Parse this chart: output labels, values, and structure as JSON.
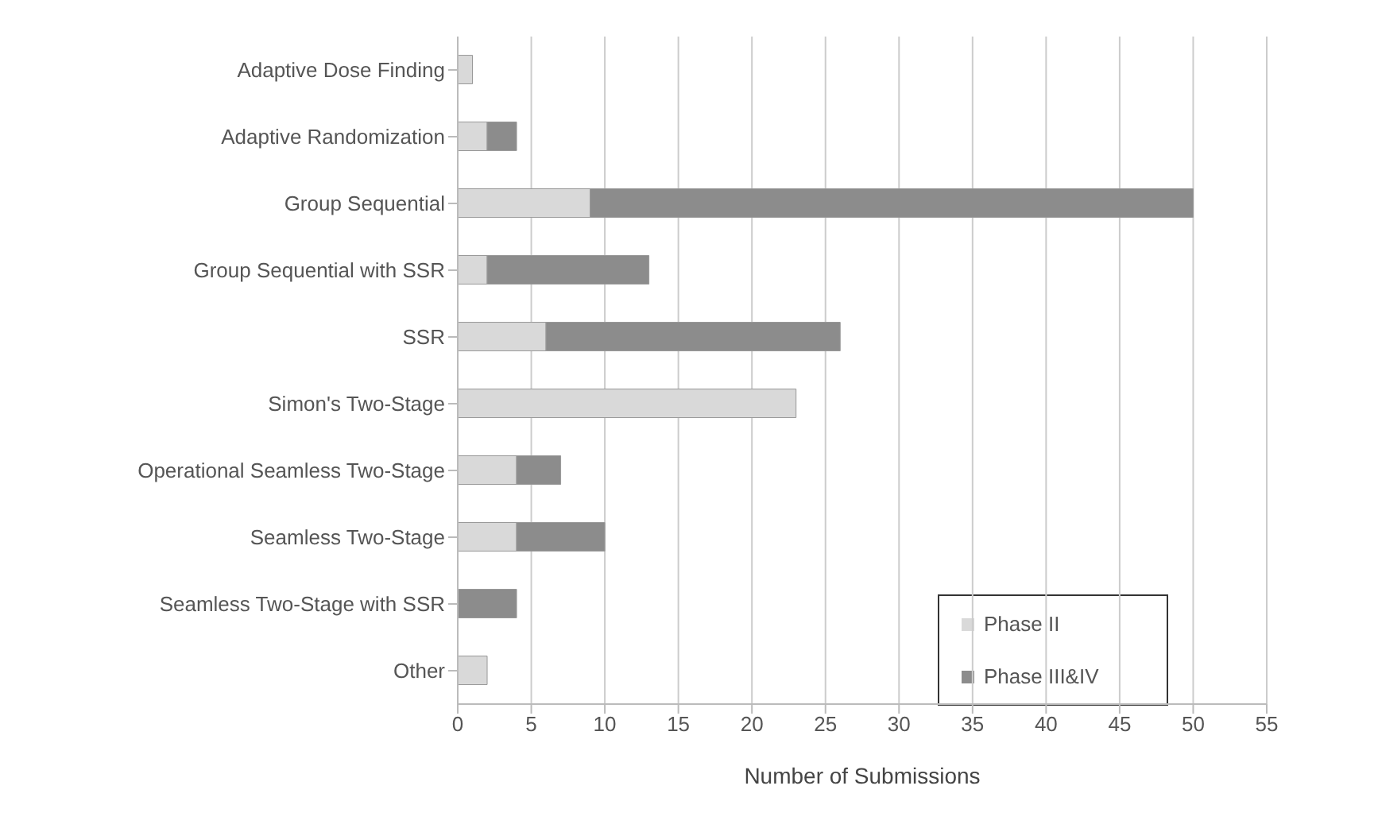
{
  "chart_data": {
    "type": "bar",
    "orientation": "horizontal",
    "stacked": true,
    "xlabel": "Number of Submissions",
    "categories": [
      "Adaptive Dose Finding",
      "Adaptive Randomization",
      "Group Sequential",
      "Group Sequential with SSR",
      "SSR",
      "Simon's Two-Stage",
      "Operational Seamless Two-Stage",
      "Seamless Two-Stage",
      "Seamless Two-Stage with SSR",
      "Other"
    ],
    "series": [
      {
        "name": "Phase II",
        "color": "#d9d9d9",
        "values": [
          1,
          2,
          9,
          2,
          6,
          23,
          4,
          4,
          0,
          2
        ]
      },
      {
        "name": "Phase III&IV",
        "color": "#8c8c8c",
        "values": [
          0,
          2,
          41,
          11,
          20,
          0,
          3,
          6,
          4,
          0
        ]
      }
    ],
    "xlim": [
      0,
      55
    ],
    "xticks": [
      0,
      5,
      10,
      15,
      20,
      25,
      30,
      35,
      40,
      45,
      50,
      55
    ],
    "grid": "x",
    "legend": "bottom right"
  }
}
